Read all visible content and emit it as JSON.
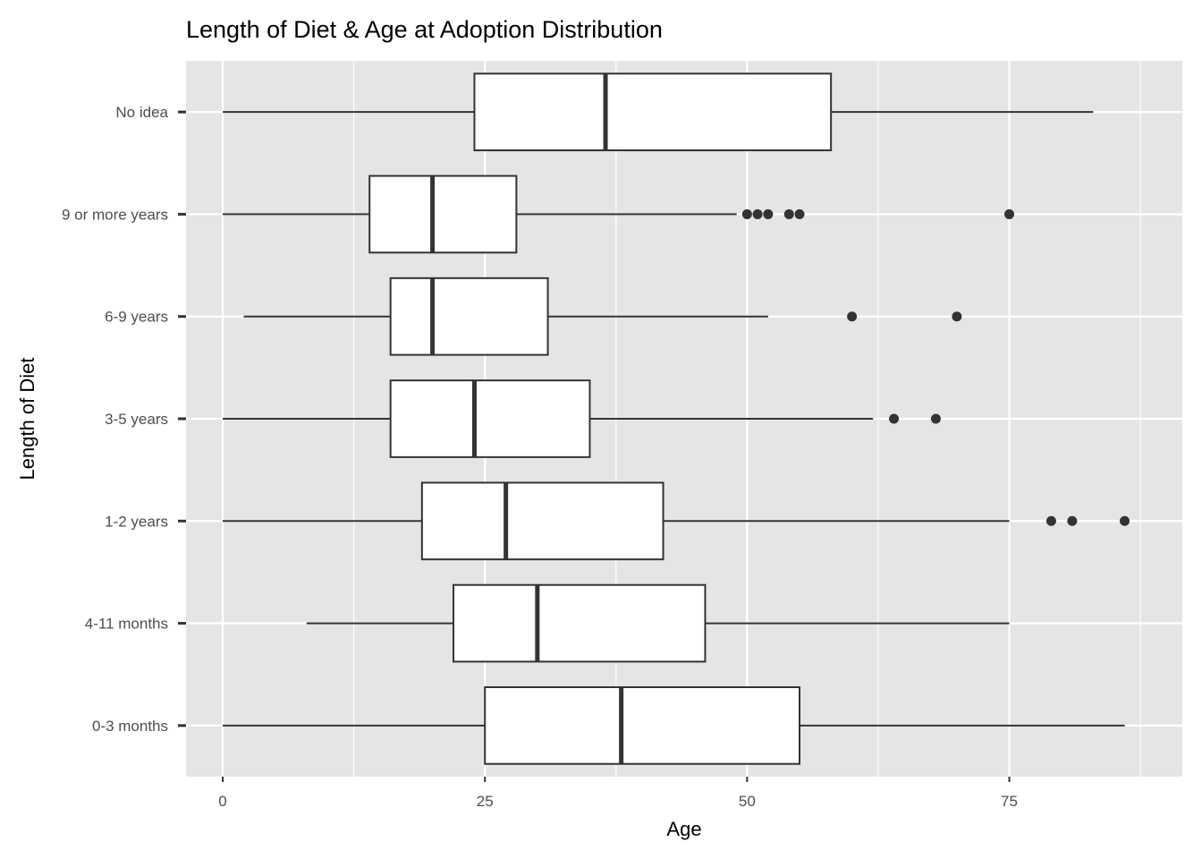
{
  "chart_data": {
    "type": "boxplot",
    "title": "Length of Diet & Age at Adoption Distribution",
    "xlabel": "Age",
    "ylabel": "Length of Diet",
    "xlim": [
      -3.5,
      91.5
    ],
    "x_ticks": [
      0,
      25,
      50,
      75
    ],
    "x_tick_labels": [
      "0",
      "25",
      "50",
      "75"
    ],
    "grid": true,
    "categories": [
      "No idea",
      "9 or more years",
      "6-9 years",
      "3-5 years",
      "1-2 years",
      "4-11 months",
      "0-3 months"
    ],
    "boxes": [
      {
        "category": "No idea",
        "whisker_low": 0,
        "q1": 24,
        "median": 36.5,
        "q3": 58,
        "whisker_high": 83,
        "outliers": []
      },
      {
        "category": "9 or more years",
        "whisker_low": 0,
        "q1": 14,
        "median": 20,
        "q3": 28,
        "whisker_high": 49,
        "outliers": [
          50,
          51,
          52,
          54,
          55,
          75
        ]
      },
      {
        "category": "6-9 years",
        "whisker_low": 2,
        "q1": 16,
        "median": 20,
        "q3": 31,
        "whisker_high": 52,
        "outliers": [
          60,
          70
        ]
      },
      {
        "category": "3-5 years",
        "whisker_low": 0,
        "q1": 16,
        "median": 24,
        "q3": 35,
        "whisker_high": 62,
        "outliers": [
          64,
          68
        ]
      },
      {
        "category": "1-2 years",
        "whisker_low": 0,
        "q1": 19,
        "median": 27,
        "q3": 42,
        "whisker_high": 75,
        "outliers": [
          79,
          81,
          86
        ]
      },
      {
        "category": "4-11 months",
        "whisker_low": 8,
        "q1": 22,
        "median": 30,
        "q3": 46,
        "whisker_high": 75,
        "outliers": []
      },
      {
        "category": "0-3 months",
        "whisker_low": 0,
        "q1": 25,
        "median": 38,
        "q3": 55,
        "whisker_high": 86,
        "outliers": []
      }
    ],
    "colors": {
      "panel_background": "#e5e5e5",
      "grid": "#ffffff",
      "box_fill": "#ffffff",
      "box_stroke": "#333333",
      "outlier": "#333333",
      "tick_text": "#4d4d4d"
    }
  }
}
